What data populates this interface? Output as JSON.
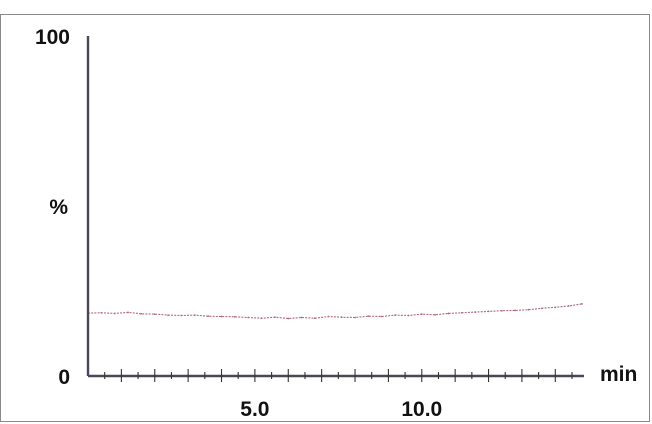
{
  "chart_data": {
    "type": "line",
    "xlabel": "min",
    "ylabel": "%",
    "xlim": [
      0,
      14.8
    ],
    "ylim": [
      0,
      100
    ],
    "x_tick_labels": [
      {
        "value": 5.0,
        "label": "5.0"
      },
      {
        "value": 10.0,
        "label": "10.0"
      }
    ],
    "y_tick_labels": [
      {
        "value": 0,
        "label": "0"
      },
      {
        "value": 100,
        "label": "100"
      }
    ],
    "ylabel_value": 50,
    "grid": false,
    "series": [
      {
        "color": "#b06a7a",
        "x": [
          0.0,
          0.4,
          0.8,
          1.2,
          1.6,
          2.0,
          2.4,
          2.8,
          3.2,
          3.6,
          4.0,
          4.4,
          4.8,
          5.2,
          5.6,
          6.0,
          6.4,
          6.8,
          7.2,
          7.6,
          8.0,
          8.4,
          8.8,
          9.2,
          9.6,
          10.0,
          10.4,
          10.8,
          11.2,
          11.6,
          12.0,
          12.4,
          12.8,
          13.2,
          13.6,
          14.0,
          14.4,
          14.8
        ],
        "y": [
          18.5,
          18.6,
          18.4,
          18.7,
          18.3,
          18.2,
          17.9,
          17.8,
          17.9,
          17.6,
          17.5,
          17.4,
          17.2,
          17.0,
          17.3,
          16.9,
          17.2,
          17.0,
          17.5,
          17.3,
          17.2,
          17.6,
          17.5,
          17.9,
          17.8,
          18.2,
          18.0,
          18.4,
          18.6,
          18.8,
          19.0,
          19.2,
          19.3,
          19.5,
          19.9,
          20.2,
          20.6,
          21.2
        ]
      }
    ]
  }
}
